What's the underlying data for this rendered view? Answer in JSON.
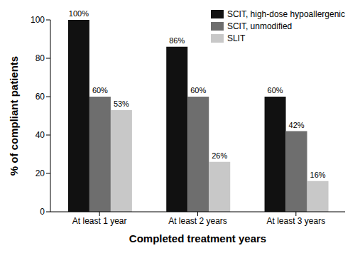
{
  "chart_data": {
    "type": "bar",
    "x_label": "Completed treatment years",
    "y_label": "% of compliant patients",
    "categories": [
      "At least 1 year",
      "At least 2 years",
      "At least 3 years"
    ],
    "series": [
      {
        "name": "SCIT, high-dose hypoallergenic",
        "color": "#111111",
        "values": [
          100,
          86,
          60
        ],
        "value_labels": [
          "100%",
          "86%",
          "60%"
        ]
      },
      {
        "name": "SCIT, unmodified",
        "color": "#6e6e6e",
        "values": [
          60,
          60,
          42
        ],
        "value_labels": [
          "60%",
          "60%",
          "42%"
        ]
      },
      {
        "name": "SLIT",
        "color": "#c8c8c8",
        "values": [
          53,
          26,
          16
        ],
        "value_labels": [
          "53%",
          "26%",
          "16%"
        ]
      }
    ],
    "ylim": [
      0,
      100
    ],
    "yticks": [
      0,
      20,
      40,
      60,
      80,
      100
    ],
    "grid": false,
    "legend": "upper right",
    "data_labels": true
  }
}
